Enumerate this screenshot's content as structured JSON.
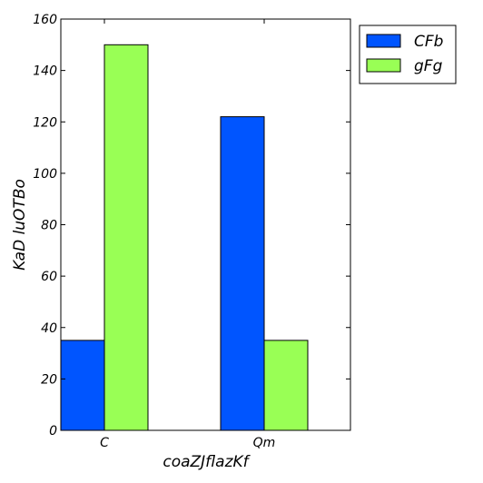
{
  "chart_data": {
    "type": "bar",
    "categories": [
      "C",
      "Qm"
    ],
    "series": [
      {
        "name": "CFb",
        "values": [
          35,
          122
        ],
        "color": "#0055ff"
      },
      {
        "name": "gFg",
        "values": [
          150,
          35
        ],
        "color": "#99ff55"
      }
    ],
    "xlabel": "coaZJflazKf",
    "ylabel": "KaD luOTBo",
    "ylim": [
      0,
      160
    ],
    "yticks": [
      0,
      20,
      40,
      60,
      80,
      100,
      120,
      140,
      160
    ],
    "grid": false,
    "legend_position": "outside-top-right"
  }
}
